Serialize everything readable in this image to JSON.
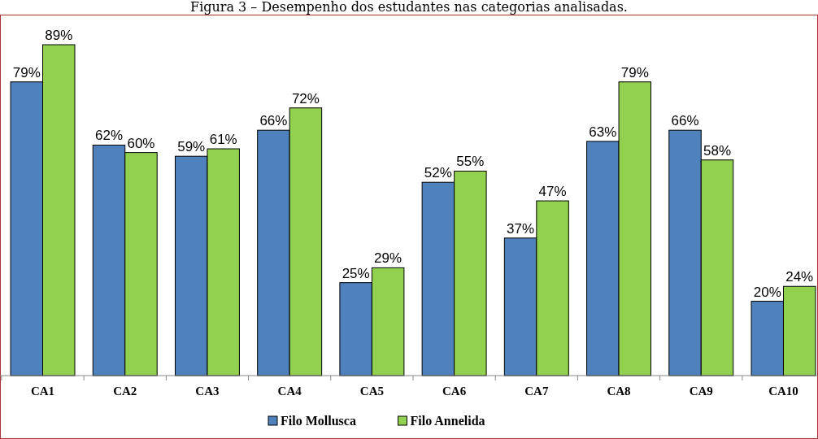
{
  "chart_data": {
    "type": "bar",
    "title": "Figura 3 – Desempenho dos estudantes nas categorias analisadas.",
    "categories": [
      "CA1",
      "CA2",
      "CA3",
      "CA4",
      "CA5",
      "CA6",
      "CA7",
      "CA8",
      "CA9",
      "CA10"
    ],
    "series": [
      {
        "name": "Filo Mollusca",
        "color": "#4f81bd",
        "values": [
          79,
          62,
          59,
          66,
          25,
          52,
          37,
          63,
          66,
          20
        ],
        "value_labels": [
          "79%",
          "62%",
          "59%",
          "66%",
          "25%",
          "52%",
          "37%",
          "63%",
          "66%",
          "20%"
        ]
      },
      {
        "name": "Filo Annelida",
        "color": "#92d050",
        "values": [
          89,
          60,
          61,
          72,
          29,
          55,
          47,
          79,
          58,
          24
        ],
        "value_labels": [
          "89%",
          "60%",
          "61%",
          "72%",
          "29%",
          "55%",
          "47%",
          "79%",
          "58%",
          "24%"
        ]
      }
    ],
    "legend": "bottom"
  }
}
